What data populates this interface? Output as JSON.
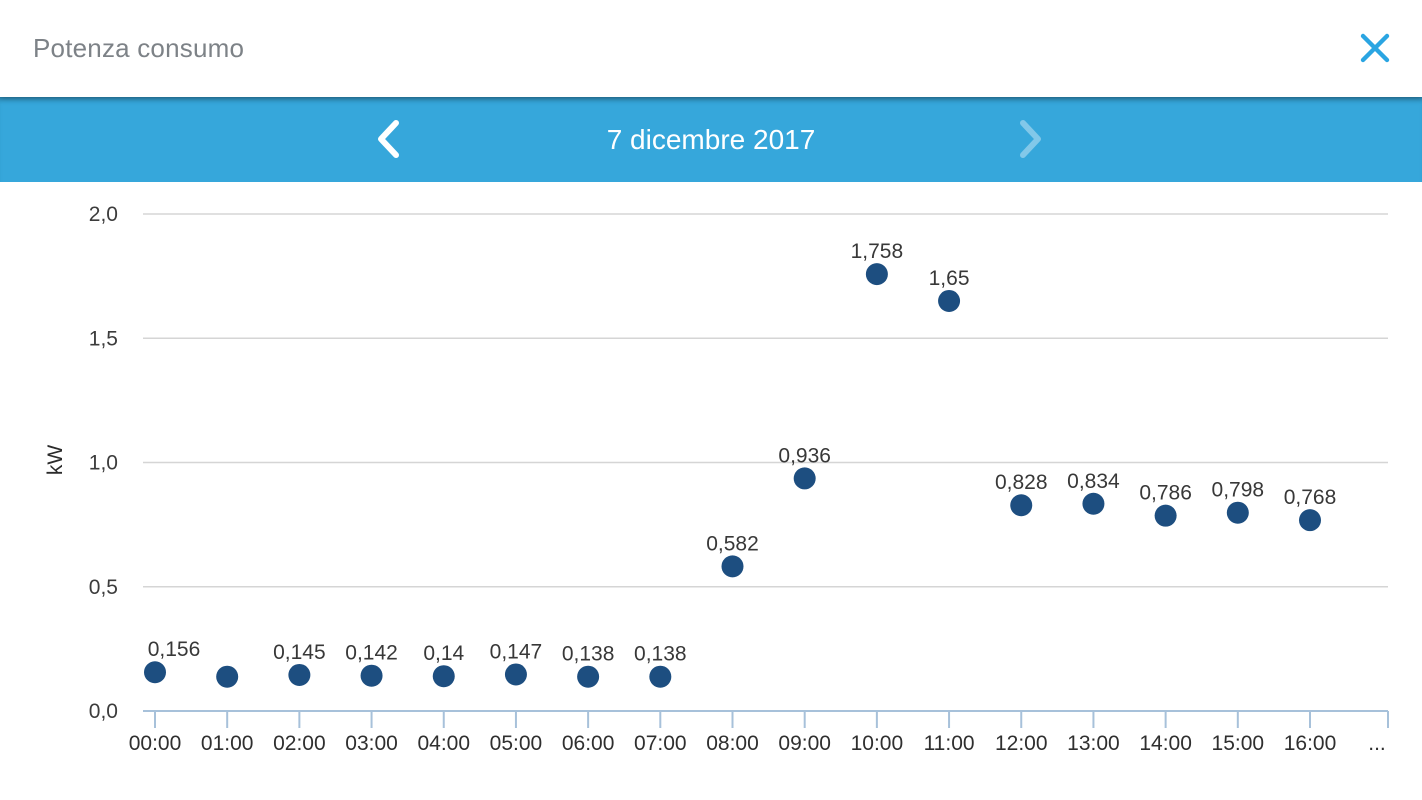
{
  "header": {
    "title": "Potenza consumo",
    "close_icon": "close-icon"
  },
  "date_nav": {
    "date": "7 dicembre 2017",
    "prev_icon": "chevron-left-icon",
    "next_icon": "chevron-right-icon",
    "next_disabled": true
  },
  "colors": {
    "accent_bar": "#36a7db",
    "close_icon": "#2aa5e2",
    "title_text": "#7d8287",
    "date_text": "#ffffff"
  },
  "chart_data": {
    "type": "scatter",
    "ylabel": "kW",
    "ylim": [
      0,
      2
    ],
    "grid": true,
    "y_ticks": [
      {
        "v": 0.0,
        "label": "0,0"
      },
      {
        "v": 0.5,
        "label": "0,5"
      },
      {
        "v": 1.0,
        "label": "1,0"
      },
      {
        "v": 1.5,
        "label": "1,5"
      },
      {
        "v": 2.0,
        "label": "2,0"
      }
    ],
    "points": [
      {
        "x": "00:00",
        "v": 0.156,
        "label": "0,156"
      },
      {
        "x": "01:00",
        "v": 0.138,
        "label": ""
      },
      {
        "x": "02:00",
        "v": 0.145,
        "label": "0,145"
      },
      {
        "x": "03:00",
        "v": 0.142,
        "label": "0,142"
      },
      {
        "x": "04:00",
        "v": 0.14,
        "label": "0,14"
      },
      {
        "x": "05:00",
        "v": 0.147,
        "label": "0,147"
      },
      {
        "x": "06:00",
        "v": 0.138,
        "label": "0,138"
      },
      {
        "x": "07:00",
        "v": 0.138,
        "label": "0,138"
      },
      {
        "x": "08:00",
        "v": 0.582,
        "label": "0,582"
      },
      {
        "x": "09:00",
        "v": 0.936,
        "label": "0,936"
      },
      {
        "x": "10:00",
        "v": 1.758,
        "label": "1,758"
      },
      {
        "x": "11:00",
        "v": 1.65,
        "label": "1,65"
      },
      {
        "x": "12:00",
        "v": 0.828,
        "label": "0,828"
      },
      {
        "x": "13:00",
        "v": 0.834,
        "label": "0,834"
      },
      {
        "x": "14:00",
        "v": 0.786,
        "label": "0,786"
      },
      {
        "x": "15:00",
        "v": 0.798,
        "label": "0,798"
      },
      {
        "x": "16:00",
        "v": 0.768,
        "label": "0,768"
      }
    ],
    "overflow_label": "...",
    "colors": {
      "point": "#1d4e80",
      "grid": "#d5d5d5",
      "axis": "#a7c1da"
    }
  }
}
